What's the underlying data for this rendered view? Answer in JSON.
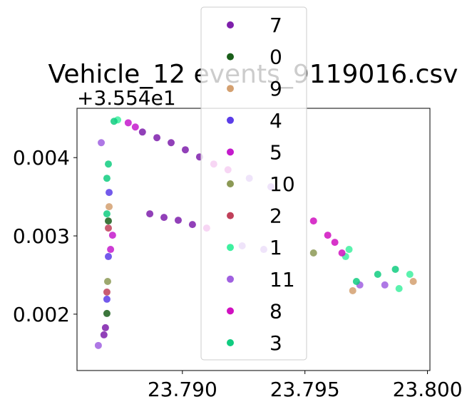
{
  "chart_data": {
    "type": "scatter",
    "title": "Vehicle_12 events_9119016.csv",
    "y_offset_label": "+3.554e1",
    "xlim": [
      23.7857,
      23.8001
    ],
    "ylim": [
      0.00128,
      0.00463
    ],
    "xticks": [
      {
        "value": 23.79,
        "label": "23.790"
      },
      23.795,
      {
        "value": 23.8,
        "label": "23.800"
      }
    ],
    "yticks": [
      0.002,
      0.003,
      0.004
    ],
    "series": [
      {
        "name": "7",
        "color": "#7e1fab",
        "x": [
          23.78837,
          23.78896,
          23.78954,
          23.79012,
          23.7907,
          23.78867,
          23.78925,
          23.78983,
          23.79041,
          23.78686,
          23.7868
        ],
        "values": [
          0.004327,
          0.004255,
          0.004191,
          0.0041,
          0.004009,
          0.003282,
          0.003236,
          0.0032,
          0.003145,
          0.001827,
          0.001736
        ]
      },
      {
        "name": "0",
        "color": "#1a5e1a",
        "x": [
          23.78698,
          23.78692
        ],
        "values": [
          0.003191,
          0.002009
        ]
      },
      {
        "name": "9",
        "color": "#d4a070",
        "x": [
          23.78701,
          23.79695,
          23.79942
        ],
        "values": [
          0.003373,
          0.0023,
          0.002418
        ]
      },
      {
        "name": "4",
        "color": "#5b3de8",
        "x": [
          23.78701,
          23.78698,
          23.78692
        ],
        "values": [
          0.003555,
          0.002736,
          0.002191
        ]
      },
      {
        "name": "5",
        "color": "#c41acc",
        "x": [
          23.78779,
          23.78808,
          23.78707,
          23.78715
        ],
        "values": [
          0.004445,
          0.004391,
          0.002827,
          0.003009
        ]
      },
      {
        "name": "10",
        "color": "#8c9955",
        "x": [
          23.78695,
          23.79535
        ],
        "values": [
          0.002418,
          0.002782
        ]
      },
      {
        "name": "2",
        "color": "#c0405a",
        "x": [
          23.78692,
          23.78698
        ],
        "values": [
          0.002282,
          0.0031
        ]
      },
      {
        "name": "1",
        "color": "#3ef0a0",
        "x": [
          23.78736,
          23.79666,
          23.7968,
          23.79928,
          23.79884
        ],
        "values": [
          0.004482,
          0.002736,
          0.002827,
          0.002509,
          0.002327
        ]
      },
      {
        "name": "11",
        "color": "#a060e0",
        "x": [
          23.78669,
          23.78657,
          23.79724,
          23.79826,
          23.79273,
          23.79361,
          23.79244,
          23.79332
        ],
        "values": [
          0.004191,
          0.0016,
          0.002373,
          0.002373,
          0.003736,
          0.003627,
          0.002873,
          0.002827
        ]
      },
      {
        "name": "8",
        "color": "#d010c0",
        "x": [
          23.79128,
          23.79186,
          23.79535,
          23.79593,
          23.79622,
          23.79099,
          23.79651
        ],
        "values": [
          0.003918,
          0.003845,
          0.003191,
          0.003009,
          0.002918,
          0.0031,
          0.002782
        ]
      },
      {
        "name": "3",
        "color": "#10cc80",
        "x": [
          23.78692,
          23.78692,
          23.78698,
          23.78721,
          23.7971,
          23.79797,
          23.79869
        ],
        "values": [
          0.003282,
          0.003736,
          0.003918,
          0.004464,
          0.002418,
          0.002509,
          0.002573
        ]
      }
    ]
  }
}
